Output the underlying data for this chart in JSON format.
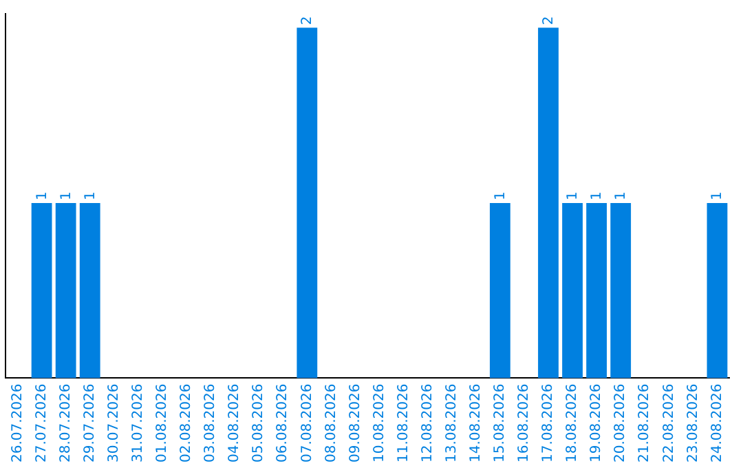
{
  "chart_data": {
    "type": "bar",
    "categories": [
      "26.07.2026",
      "27.07.2026",
      "28.07.2026",
      "29.07.2026",
      "30.07.2026",
      "31.07.2026",
      "01.08.2026",
      "02.08.2026",
      "03.08.2026",
      "04.08.2026",
      "05.08.2026",
      "06.08.2026",
      "07.08.2026",
      "08.08.2026",
      "09.08.2026",
      "10.08.2026",
      "11.08.2026",
      "12.08.2026",
      "13.08.2026",
      "14.08.2026",
      "15.08.2026",
      "16.08.2026",
      "17.08.2026",
      "18.08.2026",
      "19.08.2026",
      "20.08.2026",
      "21.08.2026",
      "22.08.2026",
      "23.08.2026",
      "24.08.2026"
    ],
    "values": [
      0,
      1,
      1,
      1,
      0,
      0,
      0,
      0,
      0,
      0,
      0,
      0,
      2,
      0,
      0,
      0,
      0,
      0,
      0,
      0,
      1,
      0,
      2,
      1,
      1,
      1,
      0,
      0,
      0,
      1
    ],
    "value_labels": [
      null,
      "1",
      "1",
      "1",
      null,
      null,
      null,
      null,
      null,
      null,
      null,
      null,
      "2",
      null,
      null,
      null,
      null,
      null,
      null,
      null,
      "1",
      null,
      "2",
      "1",
      "1",
      "1",
      null,
      null,
      null,
      "1"
    ],
    "color": "#0080e0",
    "ylim": [
      0,
      2.08
    ],
    "tick_labels": "x",
    "grid": false,
    "legend": false
  }
}
